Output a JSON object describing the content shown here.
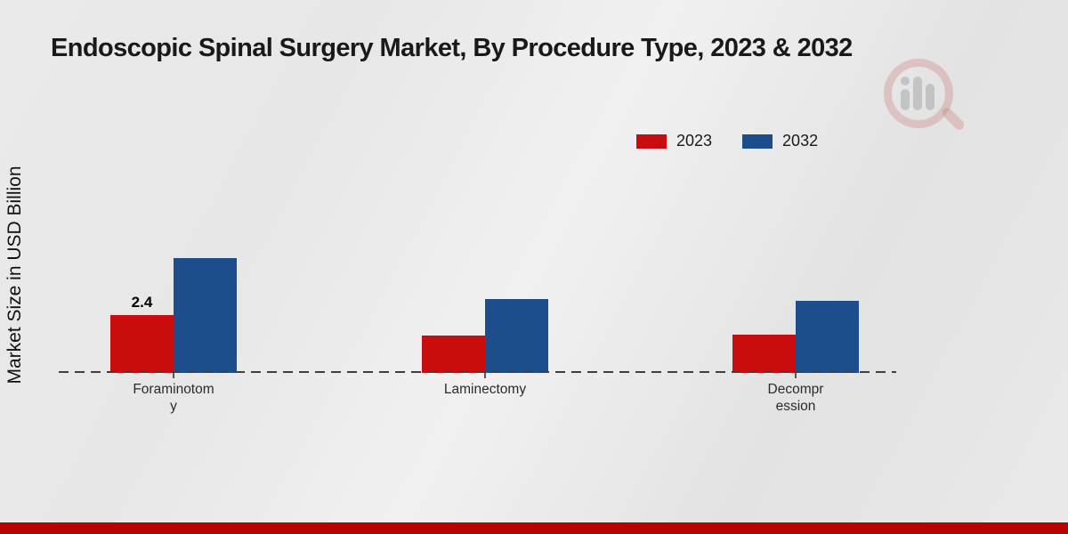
{
  "header": {
    "title": "Endoscopic Spinal Surgery Market, By Procedure Type, 2023 & 2032"
  },
  "chart_data": {
    "type": "bar",
    "title": "Endoscopic Spinal Surgery Market, By Procedure Type, 2023 & 2032",
    "xlabel": "",
    "ylabel": "Market Size in USD Billion",
    "categories": [
      "Foraminotomy",
      "Laminectomy",
      "Decompression"
    ],
    "category_label_lines": [
      [
        "Foraminotom",
        "y"
      ],
      [
        "Laminectomy"
      ],
      [
        "Decompr",
        "ession"
      ]
    ],
    "series": [
      {
        "name": "2023",
        "color": "#c90d0e",
        "values": [
          2.4,
          1.55,
          1.6
        ]
      },
      {
        "name": "2032",
        "color": "#1b4e8b",
        "values": [
          4.75,
          3.05,
          3.0
        ]
      }
    ],
    "value_labels": [
      {
        "series_index": 0,
        "category_index": 0,
        "text": "2.4"
      }
    ],
    "ylim": [
      0,
      5
    ],
    "grid": false,
    "baseline_style": "dashed",
    "legend_position": "top-right"
  },
  "style": {
    "background_color": "#e8e8e8",
    "footer_band_color": "#b80101",
    "baseline_color": "#3f3f3f",
    "text_color": "#191919"
  }
}
